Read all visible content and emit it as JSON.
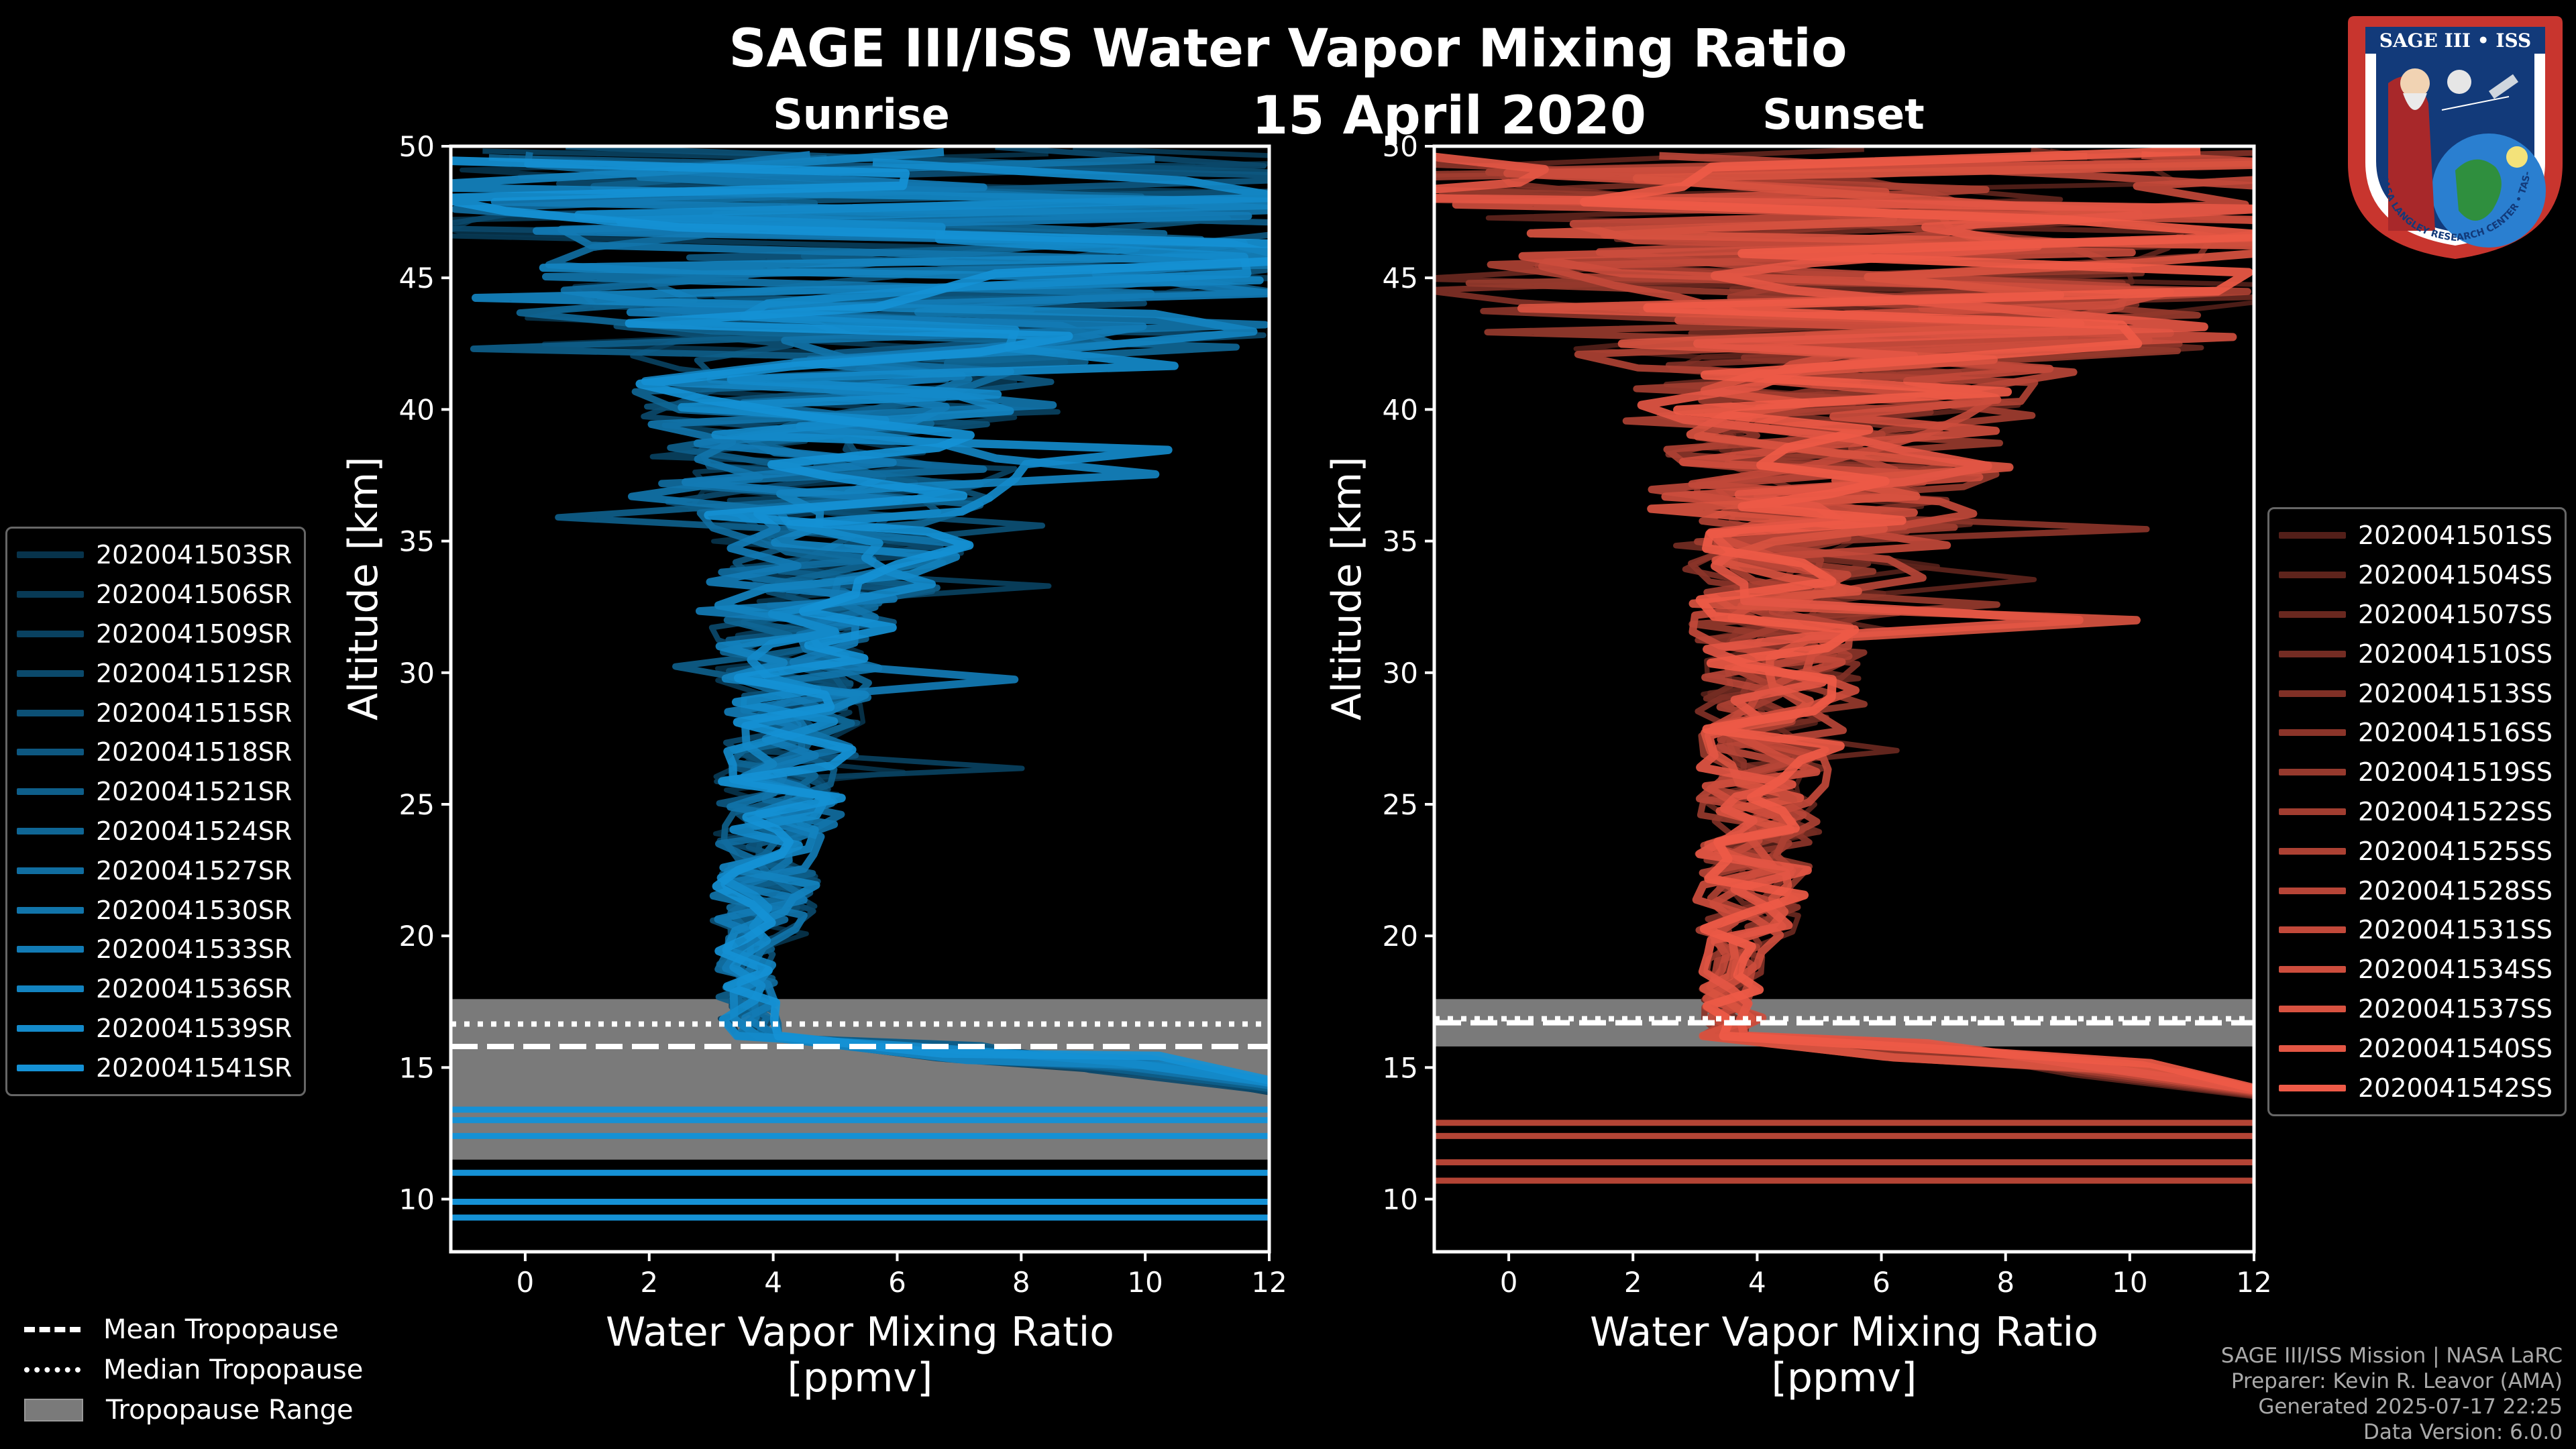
{
  "title": "SAGE III/ISS Water Vapor Mixing Ratio",
  "date": "15 April 2020",
  "colors": {
    "sunrise": "#1591d5",
    "sunset": "#ee5a47",
    "tropo_band": "#7a7a7a"
  },
  "chart_data": [
    {
      "type": "line",
      "panel": "sunrise",
      "title": "Sunrise",
      "xlabel": "Water Vapor Mixing Ratio\n[ppmv]",
      "ylabel": "Altitude [km]",
      "xlim": [
        -1.2,
        12
      ],
      "ylim": [
        8,
        50
      ],
      "xticks": [
        0,
        2,
        4,
        6,
        8,
        10,
        12
      ],
      "yticks": [
        10,
        15,
        20,
        25,
        30,
        35,
        40,
        45,
        50
      ],
      "series": [
        {
          "name": "2020041503SR"
        },
        {
          "name": "2020041506SR"
        },
        {
          "name": "2020041509SR"
        },
        {
          "name": "2020041512SR"
        },
        {
          "name": "2020041515SR"
        },
        {
          "name": "2020041518SR"
        },
        {
          "name": "2020041521SR"
        },
        {
          "name": "2020041524SR"
        },
        {
          "name": "2020041527SR"
        },
        {
          "name": "2020041530SR"
        },
        {
          "name": "2020041533SR"
        },
        {
          "name": "2020041536SR"
        },
        {
          "name": "2020041539SR"
        },
        {
          "name": "2020041541SR"
        }
      ],
      "tropopause": {
        "mean": 15.8,
        "median": 16.5,
        "range": [
          11.5,
          17.6
        ]
      },
      "lower_lines": [
        9.3,
        9.9,
        11.0,
        12.4,
        13.0,
        13.4
      ]
    },
    {
      "type": "line",
      "panel": "sunset",
      "title": "Sunset",
      "xlabel": "Water Vapor Mixing Ratio\n[ppmv]",
      "ylabel": "Altitude [km]",
      "xlim": [
        -1.2,
        12
      ],
      "ylim": [
        8,
        50
      ],
      "xticks": [
        0,
        2,
        4,
        6,
        8,
        10,
        12
      ],
      "yticks": [
        10,
        15,
        20,
        25,
        30,
        35,
        40,
        45,
        50
      ],
      "series": [
        {
          "name": "2020041501SS"
        },
        {
          "name": "2020041504SS"
        },
        {
          "name": "2020041507SS"
        },
        {
          "name": "2020041510SS"
        },
        {
          "name": "2020041513SS"
        },
        {
          "name": "2020041516SS"
        },
        {
          "name": "2020041519SS"
        },
        {
          "name": "2020041522SS"
        },
        {
          "name": "2020041525SS"
        },
        {
          "name": "2020041528SS"
        },
        {
          "name": "2020041531SS"
        },
        {
          "name": "2020041534SS"
        },
        {
          "name": "2020041537SS"
        },
        {
          "name": "2020041540SS"
        },
        {
          "name": "2020041542SS"
        }
      ],
      "tropopause": {
        "mean": 16.7,
        "median": 16.7,
        "range": [
          15.8,
          17.6
        ]
      },
      "lower_lines": [
        10.7,
        11.4,
        12.4,
        12.9
      ]
    }
  ],
  "bottom_legend": {
    "mean": "Mean Tropopause",
    "median": "Median Tropopause",
    "range": "Tropopause Range"
  },
  "footer": {
    "line1": "SAGE III/ISS Mission | NASA LaRC",
    "line2": "Preparer: Kevin R. Leavor (AMA)",
    "line3": "Generated 2025-07-17 22:25",
    "line4": "Data Version: 6.0.0"
  },
  "logo": {
    "top": "SAGE III • ISS",
    "ring": "BALL • NASA LANGLEY RESEARCH CENTER • TAS-I • ESA"
  }
}
